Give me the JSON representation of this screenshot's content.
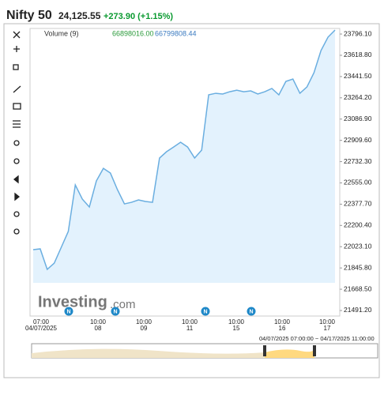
{
  "header": {
    "title": "Nifty 50",
    "price": "24,125.55",
    "change": "+273.90 (+1.15%)"
  },
  "chart_data": {
    "type": "area",
    "color": "#6aaee0",
    "fill": "#e3f2fd",
    "values": [
      21998,
      22005,
      21834,
      21886,
      22018,
      22150,
      22538,
      22420,
      22354,
      22571,
      22676,
      22637,
      22499,
      22380,
      22393,
      22413,
      22400,
      22393,
      22762,
      22815,
      22854,
      22894,
      22854,
      22762,
      22828,
      23289,
      23302,
      23296,
      23315,
      23328,
      23315,
      23322,
      23296,
      23315,
      23342,
      23289,
      23401,
      23421,
      23302,
      23355,
      23473,
      23658,
      23770,
      23829
    ],
    "ylim": [
      21445,
      23836
    ],
    "yticks": [
      {
        "value": 23796.1,
        "label": "23796.10"
      },
      {
        "value": 23618.8,
        "label": "23618.80"
      },
      {
        "value": 23441.5,
        "label": "23441.50"
      },
      {
        "value": 23264.2,
        "label": "23264.20"
      },
      {
        "value": 23086.9,
        "label": "23086.90"
      },
      {
        "value": 22909.6,
        "label": "22909.60"
      },
      {
        "value": 22732.3,
        "label": "22732.30"
      },
      {
        "value": 22555,
        "label": "22555.00"
      },
      {
        "value": 22377.7,
        "label": "22377.70"
      },
      {
        "value": 22200.4,
        "label": "22200.40"
      },
      {
        "value": 22023.1,
        "label": "22023.10"
      },
      {
        "value": 21845.8,
        "label": "21845.80"
      },
      {
        "value": 21668.5,
        "label": "21668.50"
      },
      {
        "value": 21491.2,
        "label": "21491.20"
      }
    ],
    "xticks": [
      {
        "time": "07:00",
        "date": "04/07/2025"
      },
      {
        "time": "10:00",
        "date": "08"
      },
      {
        "time": "10:00",
        "date": "09"
      },
      {
        "time": "10:00",
        "date": "11"
      },
      {
        "time": "10:00",
        "date": "15"
      },
      {
        "time": "10:00",
        "date": "16"
      },
      {
        "time": "10:00",
        "date": "17"
      }
    ],
    "volume_label": "Volume (9)",
    "volume_values": [
      "66898016.00",
      "66799808.44"
    ],
    "watermark": [
      "Investing",
      ".com"
    ],
    "events": [
      "N",
      "N",
      "N",
      "N"
    ],
    "navigator_range": "04/07/2025 07:00:00 ~ 04/17/2025 11:00:00"
  }
}
